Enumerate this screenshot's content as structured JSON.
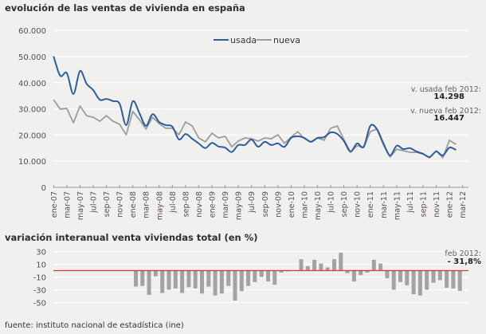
{
  "chart_data": [
    {
      "type": "line",
      "title": "evolución de las ventas de vivienda en españa",
      "ylim": [
        0,
        60000
      ],
      "y_tick_labels": [
        "0",
        "10.000",
        "20.000",
        "30.000",
        "40.000",
        "50.000",
        "60.000"
      ],
      "x_tick_labels": [
        "ene-07",
        "mar-07",
        "may-07",
        "jul-07",
        "sep-07",
        "nov-07",
        "ene-08",
        "mar-08",
        "may-08",
        "jul-08",
        "sep-08",
        "nov-08",
        "ene-09",
        "mar-09",
        "may-09",
        "jul-09",
        "sep-09",
        "nov-09",
        "ene-10",
        "mar-10",
        "may-10",
        "jul-10",
        "sep-10",
        "nov-10",
        "ene-11",
        "mar-11",
        "may-11",
        "jul-11",
        "sep-11",
        "nov-11",
        "ene-12",
        "mar-12"
      ],
      "grid": true,
      "legend": "top-center",
      "series": [
        {
          "name": "usada",
          "color": "#2f5c9a",
          "values": [
            50100,
            42700,
            43700,
            35700,
            44500,
            39600,
            37200,
            33500,
            33800,
            33000,
            32000,
            23800,
            32900,
            28400,
            23500,
            28000,
            25000,
            23800,
            23200,
            18300,
            20400,
            18600,
            16800,
            15000,
            17000,
            15600,
            15200,
            13500,
            16200,
            16200,
            18300,
            15500,
            17400,
            16200,
            16800,
            15500,
            18900,
            19500,
            18900,
            17400,
            18900,
            19200,
            21000,
            20400,
            17700,
            13700,
            16800,
            15500,
            23500,
            22300,
            16800,
            12200,
            15900,
            14600,
            15000,
            13700,
            12800,
            11600,
            13700,
            12200,
            15200,
            14298
          ]
        },
        {
          "name": "nueva",
          "color": "#9c9c9c",
          "values": [
            33500,
            29900,
            30200,
            24700,
            31100,
            27400,
            26800,
            25300,
            27400,
            25300,
            24100,
            20100,
            29000,
            25900,
            22300,
            26800,
            24400,
            22600,
            22600,
            20100,
            25000,
            23500,
            18900,
            17400,
            20700,
            18900,
            19500,
            15500,
            17700,
            18900,
            18600,
            17700,
            18900,
            18600,
            20100,
            16800,
            19200,
            21300,
            18600,
            17400,
            18900,
            18000,
            22600,
            23500,
            18300,
            13400,
            15900,
            15200,
            21300,
            22300,
            16200,
            11600,
            14600,
            14000,
            13400,
            13400,
            12800,
            11300,
            14000,
            11300,
            18000,
            16447
          ]
        }
      ],
      "annotations": [
        {
          "label": "v. usada feb 2012:",
          "value": "14.298"
        },
        {
          "label": "v. nueva feb 2012:",
          "value": "16.447"
        }
      ]
    },
    {
      "type": "bar",
      "title": "variación interanual venta viviendas total (en %)",
      "ylim": [
        -55,
        35
      ],
      "y_tick_labels": [
        "30",
        "10",
        "-10",
        "-30",
        "-50"
      ],
      "y_ticks": [
        30,
        10,
        -10,
        -30,
        -50
      ],
      "grid": true,
      "bar_color": "#a3a3a3",
      "zero_line_color": "#e8332f",
      "values": [
        -25,
        -24,
        -38,
        -9,
        -35,
        -30,
        -28,
        -35,
        -26,
        -28,
        -36,
        -25,
        -39,
        -36,
        -24,
        -47,
        -32,
        -24,
        -18,
        -10,
        -17,
        -22,
        -3,
        -1,
        0,
        18,
        7,
        17,
        11,
        5,
        18,
        28,
        -4,
        -17,
        -7,
        -3,
        17,
        11,
        -12,
        -30,
        -18,
        -23,
        -37,
        -39,
        -30,
        -19,
        -15,
        -27,
        -28,
        -31.8
      ],
      "annotation": {
        "label": "feb 2012:",
        "value": "- 31,8%"
      }
    }
  ],
  "footer": "fuente: instituto nacional de estadística (ine)"
}
